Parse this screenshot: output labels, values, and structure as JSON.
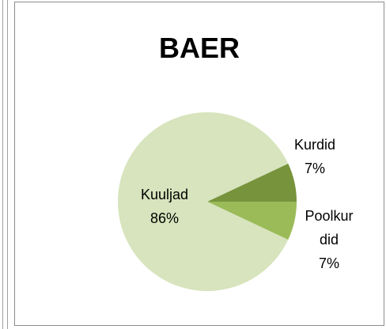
{
  "chart_data": {
    "type": "pie",
    "title": "BAER",
    "categories": [
      "Kurdid",
      "Poolkurdid",
      "Kuuljad"
    ],
    "values": [
      7,
      7,
      86
    ],
    "value_labels": [
      "7%",
      "7%",
      "86%"
    ],
    "colors": [
      "#77933c",
      "#9bbb59",
      "#d7e4bd"
    ]
  }
}
